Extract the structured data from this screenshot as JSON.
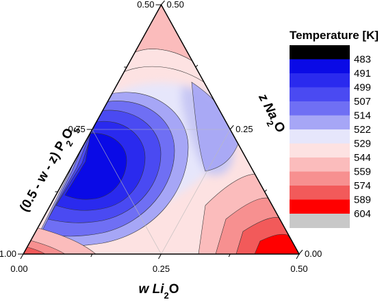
{
  "chart_data": {
    "type": "heatmap",
    "subtype": "ternary-contour",
    "axes": {
      "bottom": {
        "label_main": "w Li",
        "label_sub": "2",
        "label_tail": "O",
        "ticks": [
          "0.00",
          "0.25",
          "0.50"
        ],
        "range": [
          0,
          0.5
        ]
      },
      "left": {
        "label_main": "(0.5 - w - z) P",
        "label_sub1": "2",
        "label_mid": "O",
        "label_sub2": "5",
        "ticks": [
          "0.50",
          "0.75",
          "1.00"
        ],
        "range": [
          0.5,
          1.0
        ]
      },
      "right": {
        "label_main": "z Na",
        "label_sub": "2",
        "label_tail": "O",
        "ticks": [
          "0.50",
          "0.25",
          "0.00"
        ],
        "range": [
          0,
          0.5
        ]
      }
    },
    "legend": {
      "title": "Temperature [K]",
      "placement": "right",
      "levels": [
        "483",
        "491",
        "499",
        "507",
        "514",
        "522",
        "529",
        "544",
        "559",
        "574",
        "589",
        "604"
      ],
      "colors": [
        "#000000",
        "#0a0ae6",
        "#2a2aee",
        "#4a4af2",
        "#6f6ff4",
        "#a6a6f6",
        "#e6e6fb",
        "#fde2e2",
        "#fbbcbc",
        "#f79090",
        "#f25a5a",
        "#ff0000",
        "#c8c8c8"
      ]
    }
  }
}
